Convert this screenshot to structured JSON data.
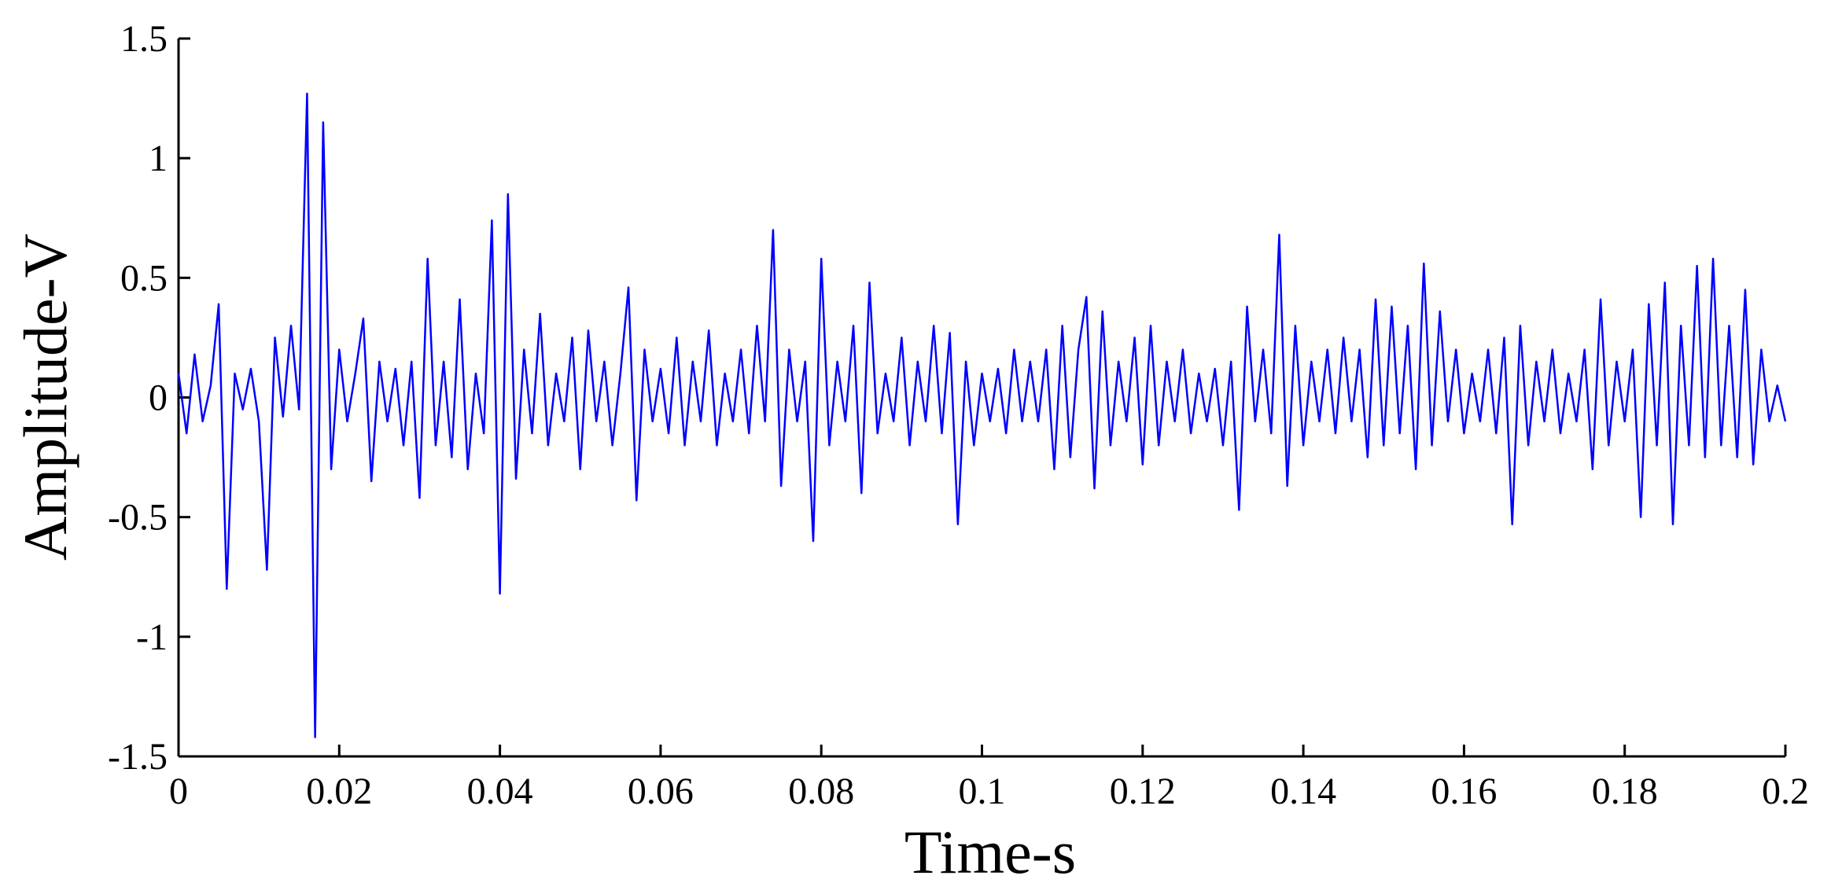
{
  "chart_data": {
    "type": "line",
    "xlabel": "Time-s",
    "ylabel": "Amplitude-V",
    "color": "#0000ff",
    "xlim": [
      0,
      0.2
    ],
    "ylim": [
      -1.5,
      1.5
    ],
    "xticks": [
      0,
      0.02,
      0.04,
      0.06,
      0.08,
      0.1,
      0.12,
      0.14,
      0.16,
      0.18,
      0.2
    ],
    "yticks": [
      -1.5,
      -1,
      -0.5,
      0,
      0.5,
      1,
      1.5
    ],
    "x": [
      0,
      0.001,
      0.002,
      0.003,
      0.004,
      0.005,
      0.006,
      0.007,
      0.008,
      0.009,
      0.01,
      0.011,
      0.012,
      0.013,
      0.014,
      0.015,
      0.016,
      0.017,
      0.018,
      0.019,
      0.02,
      0.021,
      0.022,
      0.023,
      0.024,
      0.025,
      0.026,
      0.027,
      0.028,
      0.029,
      0.03,
      0.031,
      0.032,
      0.033,
      0.034,
      0.035,
      0.036,
      0.037,
      0.038,
      0.039,
      0.04,
      0.041,
      0.042,
      0.043,
      0.044,
      0.045,
      0.046,
      0.047,
      0.048,
      0.049,
      0.05,
      0.051,
      0.052,
      0.053,
      0.054,
      0.055,
      0.056,
      0.057,
      0.058,
      0.059,
      0.06,
      0.061,
      0.062,
      0.063,
      0.064,
      0.065,
      0.066,
      0.067,
      0.068,
      0.069,
      0.07,
      0.071,
      0.072,
      0.073,
      0.074,
      0.075,
      0.076,
      0.077,
      0.078,
      0.079,
      0.08,
      0.081,
      0.082,
      0.083,
      0.084,
      0.085,
      0.086,
      0.087,
      0.088,
      0.089,
      0.09,
      0.091,
      0.092,
      0.093,
      0.094,
      0.095,
      0.096,
      0.097,
      0.098,
      0.099,
      0.1,
      0.101,
      0.102,
      0.103,
      0.104,
      0.105,
      0.106,
      0.107,
      0.108,
      0.109,
      0.11,
      0.111,
      0.112,
      0.113,
      0.114,
      0.115,
      0.116,
      0.117,
      0.118,
      0.119,
      0.12,
      0.121,
      0.122,
      0.123,
      0.124,
      0.125,
      0.126,
      0.127,
      0.128,
      0.129,
      0.13,
      0.131,
      0.132,
      0.133,
      0.134,
      0.135,
      0.136,
      0.137,
      0.138,
      0.139,
      0.14,
      0.141,
      0.142,
      0.143,
      0.144,
      0.145,
      0.146,
      0.147,
      0.148,
      0.149,
      0.15,
      0.151,
      0.152,
      0.153,
      0.154,
      0.155,
      0.156,
      0.157,
      0.158,
      0.159,
      0.16,
      0.161,
      0.162,
      0.163,
      0.164,
      0.165,
      0.166,
      0.167,
      0.168,
      0.169,
      0.17,
      0.171,
      0.172,
      0.173,
      0.174,
      0.175,
      0.176,
      0.177,
      0.178,
      0.179,
      0.18,
      0.181,
      0.182,
      0.183,
      0.184,
      0.185,
      0.186,
      0.187,
      0.188,
      0.189,
      0.19,
      0.191,
      0.192,
      0.193,
      0.194,
      0.195,
      0.196,
      0.197,
      0.198,
      0.199,
      0.2
    ],
    "values": [
      0.1,
      -0.15,
      0.18,
      -0.1,
      0.05,
      0.39,
      -0.8,
      0.1,
      -0.05,
      0.12,
      -0.1,
      -0.72,
      0.25,
      -0.08,
      0.3,
      -0.05,
      1.27,
      -1.42,
      1.15,
      -0.3,
      0.2,
      -0.1,
      0.1,
      0.33,
      -0.35,
      0.15,
      -0.1,
      0.12,
      -0.2,
      0.15,
      -0.42,
      0.58,
      -0.2,
      0.15,
      -0.25,
      0.41,
      -0.3,
      0.1,
      -0.15,
      0.74,
      -0.82,
      0.85,
      -0.34,
      0.2,
      -0.15,
      0.35,
      -0.2,
      0.1,
      -0.1,
      0.25,
      -0.3,
      0.28,
      -0.1,
      0.15,
      -0.2,
      0.1,
      0.46,
      -0.43,
      0.2,
      -0.1,
      0.12,
      -0.15,
      0.25,
      -0.2,
      0.15,
      -0.1,
      0.28,
      -0.2,
      0.1,
      -0.1,
      0.2,
      -0.15,
      0.3,
      -0.1,
      0.7,
      -0.37,
      0.2,
      -0.1,
      0.15,
      -0.6,
      0.58,
      -0.2,
      0.15,
      -0.1,
      0.3,
      -0.4,
      0.48,
      -0.15,
      0.1,
      -0.1,
      0.25,
      -0.2,
      0.15,
      -0.1,
      0.3,
      -0.15,
      0.27,
      -0.53,
      0.15,
      -0.2,
      0.1,
      -0.1,
      0.12,
      -0.15,
      0.2,
      -0.1,
      0.15,
      -0.1,
      0.2,
      -0.3,
      0.3,
      -0.25,
      0.2,
      0.42,
      -0.38,
      0.36,
      -0.2,
      0.15,
      -0.1,
      0.25,
      -0.28,
      0.3,
      -0.2,
      0.15,
      -0.1,
      0.2,
      -0.15,
      0.1,
      -0.1,
      0.12,
      -0.2,
      0.15,
      -0.47,
      0.38,
      -0.1,
      0.2,
      -0.15,
      0.68,
      -0.37,
      0.3,
      -0.2,
      0.15,
      -0.1,
      0.2,
      -0.15,
      0.25,
      -0.1,
      0.2,
      -0.25,
      0.41,
      -0.2,
      0.38,
      -0.15,
      0.3,
      -0.3,
      0.56,
      -0.2,
      0.36,
      -0.1,
      0.2,
      -0.15,
      0.1,
      -0.1,
      0.2,
      -0.15,
      0.25,
      -0.53,
      0.3,
      -0.2,
      0.15,
      -0.1,
      0.2,
      -0.15,
      0.1,
      -0.1,
      0.2,
      -0.3,
      0.41,
      -0.2,
      0.15,
      -0.1,
      0.2,
      -0.5,
      0.39,
      -0.2,
      0.48,
      -0.53,
      0.3,
      -0.2,
      0.55,
      -0.25,
      0.58,
      -0.2,
      0.3,
      -0.25,
      0.45,
      -0.28,
      0.2,
      -0.1,
      0.05,
      -0.1
    ]
  }
}
